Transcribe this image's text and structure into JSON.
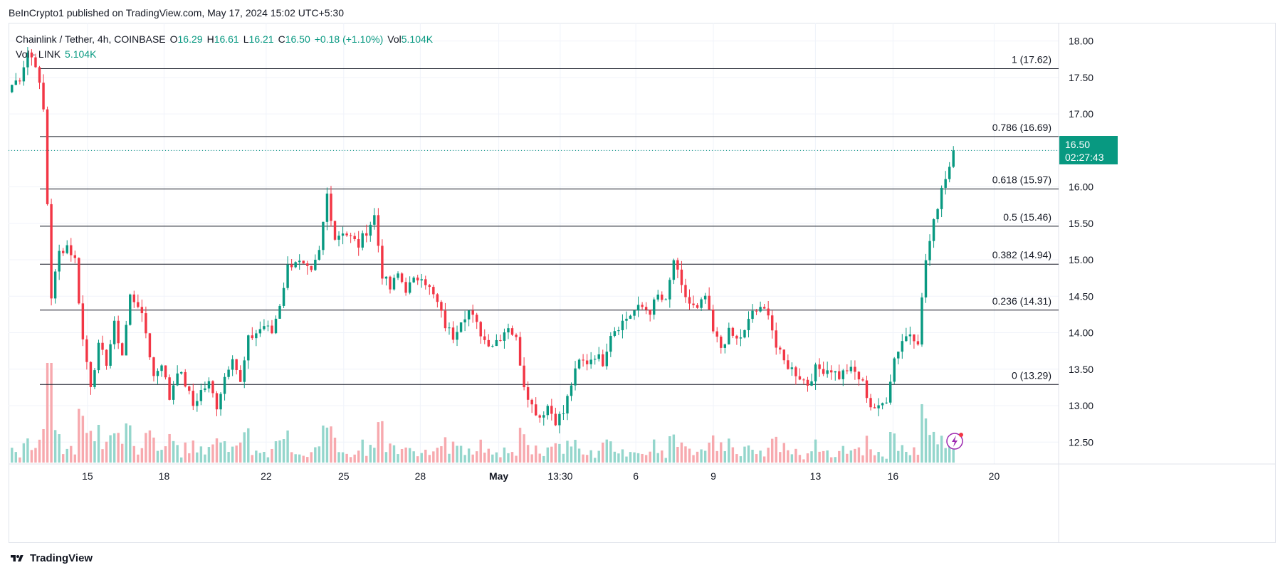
{
  "publish_line": "BeInCrypto1 published on TradingView.com, May 17, 2024 15:02 UTC+5:30",
  "legend": {
    "symbol": "Chainlink / Tether, 4h, COINBASE",
    "o_label": "O",
    "o_value": "16.29",
    "h_label": "H",
    "h_value": "16.61",
    "l_label": "L",
    "l_value": "16.21",
    "c_label": "C",
    "c_value": "16.50",
    "change": "+0.18 (+1.10%)",
    "vol_label": "Vol",
    "vol_value": "5.104K",
    "vol_line_label": "Vol · LINK",
    "vol_line_value": "5.104K"
  },
  "price_badge": {
    "price": "16.50",
    "countdown": "02:27:43"
  },
  "footer": {
    "brand": "TradingView"
  },
  "colors": {
    "up": "#089981",
    "down": "#f23645",
    "vol_up": "#94d6cc",
    "vol_down": "#f7a9ae",
    "grid": "#f0f3fa",
    "fib": "#131722"
  },
  "chart_data": {
    "type": "candlestick",
    "interval": "4h",
    "ylim": [
      12.2,
      18.25
    ],
    "y_ticks": [
      12.5,
      13.0,
      13.5,
      14.0,
      14.5,
      15.0,
      15.5,
      16.0,
      16.5,
      17.0,
      17.5,
      18.0
    ],
    "y_tick_labels": [
      "12.50",
      "13.00",
      "13.50",
      "14.00",
      "14.50",
      "15.00",
      "15.50",
      "16.00",
      "16.50",
      "17.00",
      "17.50",
      "18.00"
    ],
    "x_ticks": [
      {
        "label": "15",
        "bold": false,
        "pos": 0.082
      },
      {
        "label": "18",
        "bold": false,
        "pos": 0.163
      },
      {
        "label": "22",
        "bold": false,
        "pos": 0.271
      },
      {
        "label": "25",
        "bold": false,
        "pos": 0.353
      },
      {
        "label": "28",
        "bold": false,
        "pos": 0.434
      },
      {
        "label": "May",
        "bold": true,
        "pos": 0.517
      },
      {
        "label": "13:30",
        "bold": false,
        "pos": 0.582
      },
      {
        "label": "6",
        "bold": false,
        "pos": 0.662
      },
      {
        "label": "9",
        "bold": false,
        "pos": 0.744
      },
      {
        "label": "13",
        "bold": false,
        "pos": 0.852
      },
      {
        "label": "16",
        "bold": false,
        "pos": 0.934
      },
      {
        "label": "20",
        "bold": false,
        "pos": 1.041
      }
    ],
    "fib_levels": [
      {
        "ratio": "1",
        "price": 17.62,
        "label": "1 (17.62)"
      },
      {
        "ratio": "0.786",
        "price": 16.69,
        "label": "0.786 (16.69)"
      },
      {
        "ratio": "0.618",
        "price": 15.97,
        "label": "0.618 (15.97)"
      },
      {
        "ratio": "0.5",
        "price": 15.46,
        "label": "0.5 (15.46)"
      },
      {
        "ratio": "0.382",
        "price": 14.94,
        "label": "0.382 (14.94)"
      },
      {
        "ratio": "0.236",
        "price": 14.31,
        "label": "0.236 (14.31)"
      },
      {
        "ratio": "0",
        "price": 13.29,
        "label": "0 (13.29)"
      }
    ],
    "current_price": 16.5,
    "anchors": [
      [
        0,
        17.4
      ],
      [
        2,
        17.5
      ],
      [
        4,
        17.85
      ],
      [
        6,
        17.7
      ],
      [
        8,
        17.05
      ],
      [
        10,
        14.5
      ],
      [
        12,
        15.1
      ],
      [
        14,
        15.2
      ],
      [
        16,
        15.0
      ],
      [
        18,
        13.9
      ],
      [
        20,
        13.3
      ],
      [
        22,
        13.8
      ],
      [
        24,
        13.6
      ],
      [
        26,
        14.1
      ],
      [
        28,
        13.7
      ],
      [
        30,
        14.5
      ],
      [
        32,
        14.4
      ],
      [
        34,
        14.0
      ],
      [
        36,
        13.4
      ],
      [
        38,
        13.6
      ],
      [
        40,
        13.1
      ],
      [
        42,
        13.5
      ],
      [
        44,
        13.3
      ],
      [
        46,
        13.0
      ],
      [
        48,
        13.2
      ],
      [
        50,
        13.3
      ],
      [
        52,
        13.0
      ],
      [
        54,
        13.4
      ],
      [
        56,
        13.7
      ],
      [
        58,
        13.3
      ],
      [
        60,
        13.9
      ],
      [
        62,
        14.0
      ],
      [
        64,
        14.1
      ],
      [
        66,
        14.0
      ],
      [
        68,
        14.4
      ],
      [
        70,
        14.9
      ],
      [
        72,
        15.0
      ],
      [
        74,
        14.9
      ],
      [
        76,
        14.8
      ],
      [
        78,
        15.1
      ],
      [
        80,
        15.9
      ],
      [
        82,
        15.3
      ],
      [
        84,
        15.4
      ],
      [
        86,
        15.3
      ],
      [
        88,
        15.2
      ],
      [
        90,
        15.4
      ],
      [
        92,
        15.6
      ],
      [
        94,
        14.8
      ],
      [
        96,
        14.6
      ],
      [
        98,
        14.8
      ],
      [
        100,
        14.6
      ],
      [
        102,
        14.7
      ],
      [
        104,
        14.8
      ],
      [
        106,
        14.6
      ],
      [
        108,
        14.4
      ],
      [
        110,
        14.1
      ],
      [
        112,
        13.95
      ],
      [
        114,
        14.2
      ],
      [
        116,
        14.3
      ],
      [
        118,
        14.1
      ],
      [
        120,
        13.9
      ],
      [
        122,
        13.85
      ],
      [
        124,
        13.95
      ],
      [
        126,
        14.1
      ],
      [
        128,
        13.9
      ],
      [
        130,
        13.3
      ],
      [
        132,
        13.0
      ],
      [
        134,
        12.85
      ],
      [
        136,
        13.0
      ],
      [
        138,
        12.8
      ],
      [
        140,
        12.9
      ],
      [
        142,
        13.3
      ],
      [
        144,
        13.6
      ],
      [
        146,
        13.6
      ],
      [
        148,
        13.7
      ],
      [
        150,
        13.6
      ],
      [
        152,
        14.0
      ],
      [
        154,
        14.1
      ],
      [
        156,
        14.2
      ],
      [
        158,
        14.3
      ],
      [
        160,
        14.35
      ],
      [
        162,
        14.3
      ],
      [
        164,
        14.5
      ],
      [
        166,
        14.4
      ],
      [
        168,
        15.0
      ],
      [
        170,
        14.6
      ],
      [
        172,
        14.4
      ],
      [
        174,
        14.3
      ],
      [
        176,
        14.5
      ],
      [
        178,
        14.0
      ],
      [
        180,
        13.8
      ],
      [
        182,
        14.0
      ],
      [
        184,
        13.9
      ],
      [
        186,
        14.0
      ],
      [
        188,
        14.3
      ],
      [
        190,
        14.3
      ],
      [
        192,
        14.3
      ],
      [
        194,
        13.8
      ],
      [
        196,
        13.6
      ],
      [
        198,
        13.5
      ],
      [
        200,
        13.4
      ],
      [
        202,
        13.3
      ],
      [
        204,
        13.5
      ],
      [
        206,
        13.5
      ],
      [
        208,
        13.5
      ],
      [
        210,
        13.4
      ],
      [
        212,
        13.5
      ],
      [
        214,
        13.45
      ],
      [
        216,
        13.3
      ],
      [
        218,
        13.0
      ],
      [
        220,
        12.95
      ],
      [
        222,
        13.1
      ],
      [
        224,
        13.65
      ],
      [
        226,
        13.9
      ],
      [
        228,
        14.0
      ],
      [
        230,
        13.9
      ],
      [
        232,
        15.0
      ],
      [
        234,
        15.5
      ],
      [
        236,
        16.0
      ],
      [
        238,
        16.29
      ],
      [
        239,
        16.5
      ]
    ],
    "candle_count": 240
  }
}
